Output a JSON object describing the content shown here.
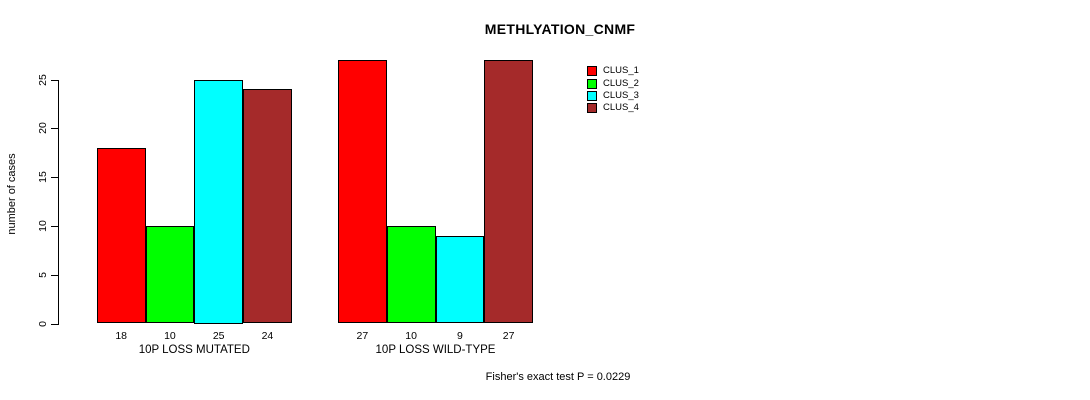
{
  "chart_data": {
    "type": "bar",
    "title": "METHLYATION_CNMF",
    "ylabel": "number of cases",
    "xlabel": "",
    "footnote": "Fisher's exact test P = 0.0229",
    "categories": [
      "10P LOSS MUTATED",
      "10P LOSS WILD-TYPE"
    ],
    "series": [
      {
        "name": "CLUS_1",
        "color": "#FF0000",
        "values": [
          18,
          27
        ]
      },
      {
        "name": "CLUS_2",
        "color": "#00FF00",
        "values": [
          10,
          10
        ]
      },
      {
        "name": "CLUS_3",
        "color": "#00FFFF",
        "values": [
          25,
          9
        ]
      },
      {
        "name": "CLUS_4",
        "color": "#A52A2A",
        "values": [
          24,
          27
        ]
      }
    ],
    "bar_value_labels": [
      [
        18,
        10,
        25,
        24
      ],
      [
        27,
        10,
        9,
        27
      ]
    ],
    "ylim": [
      0,
      25
    ],
    "yticks": [
      0,
      5,
      10,
      15,
      20,
      25
    ],
    "grid": false,
    "legend_position": "top-right",
    "legend_entries": [
      "CLUS_1",
      "CLUS_2",
      "CLUS_3",
      "CLUS_4"
    ],
    "bar_border_color": "#000000",
    "background_color": "#FFFFFF",
    "text_color": "#000000"
  }
}
